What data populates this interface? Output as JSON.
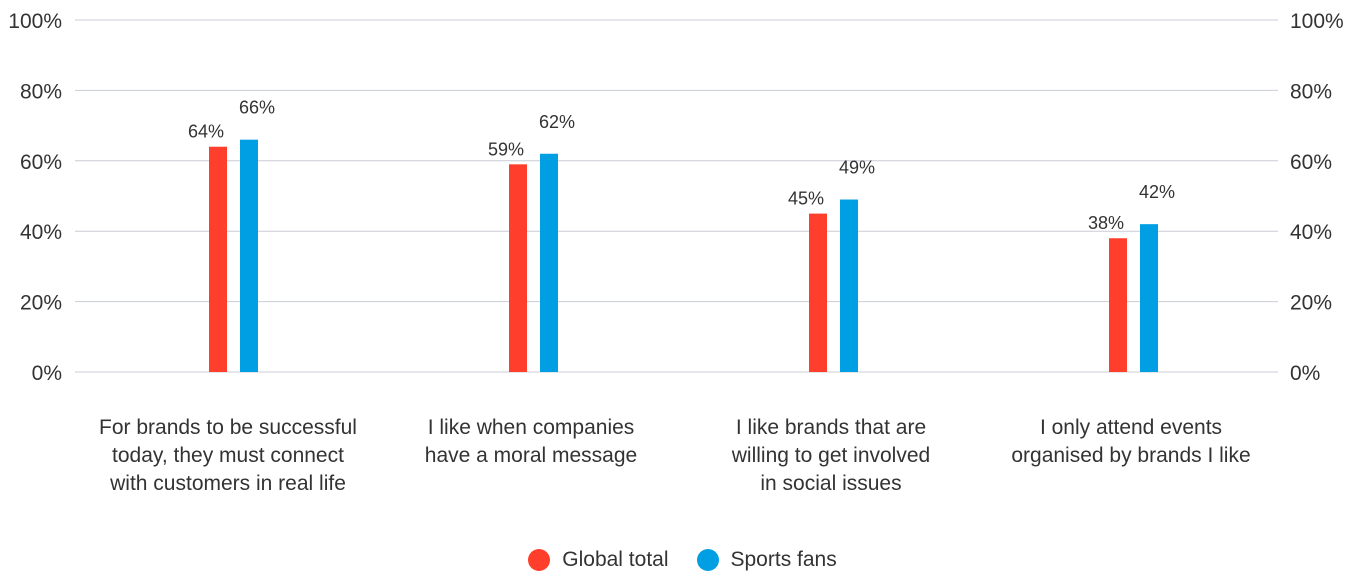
{
  "chart_data": {
    "type": "bar",
    "categories": [
      "For brands to be successful today, they must connect with customers in real life",
      "I like when companies have a moral message",
      "I like brands that are willing to get involved in social issues",
      "I only attend events organised by brands I like"
    ],
    "series": [
      {
        "name": "Global total",
        "values": [
          64,
          59,
          45,
          38
        ],
        "color": "#ff3f2b"
      },
      {
        "name": "Sports fans",
        "values": [
          66,
          62,
          49,
          42
        ],
        "color": "#009fe3"
      }
    ],
    "ylim": [
      0,
      100
    ],
    "yticks": [
      "0%",
      "20%",
      "40%",
      "60%",
      "80%",
      "100%"
    ],
    "value_suffix": "%",
    "grid": true,
    "legend_position": "bottom"
  },
  "legend": {
    "items": [
      {
        "label": "Global total",
        "color": "#ff3f2b"
      },
      {
        "label": "Sports fans",
        "color": "#009fe3"
      }
    ]
  }
}
